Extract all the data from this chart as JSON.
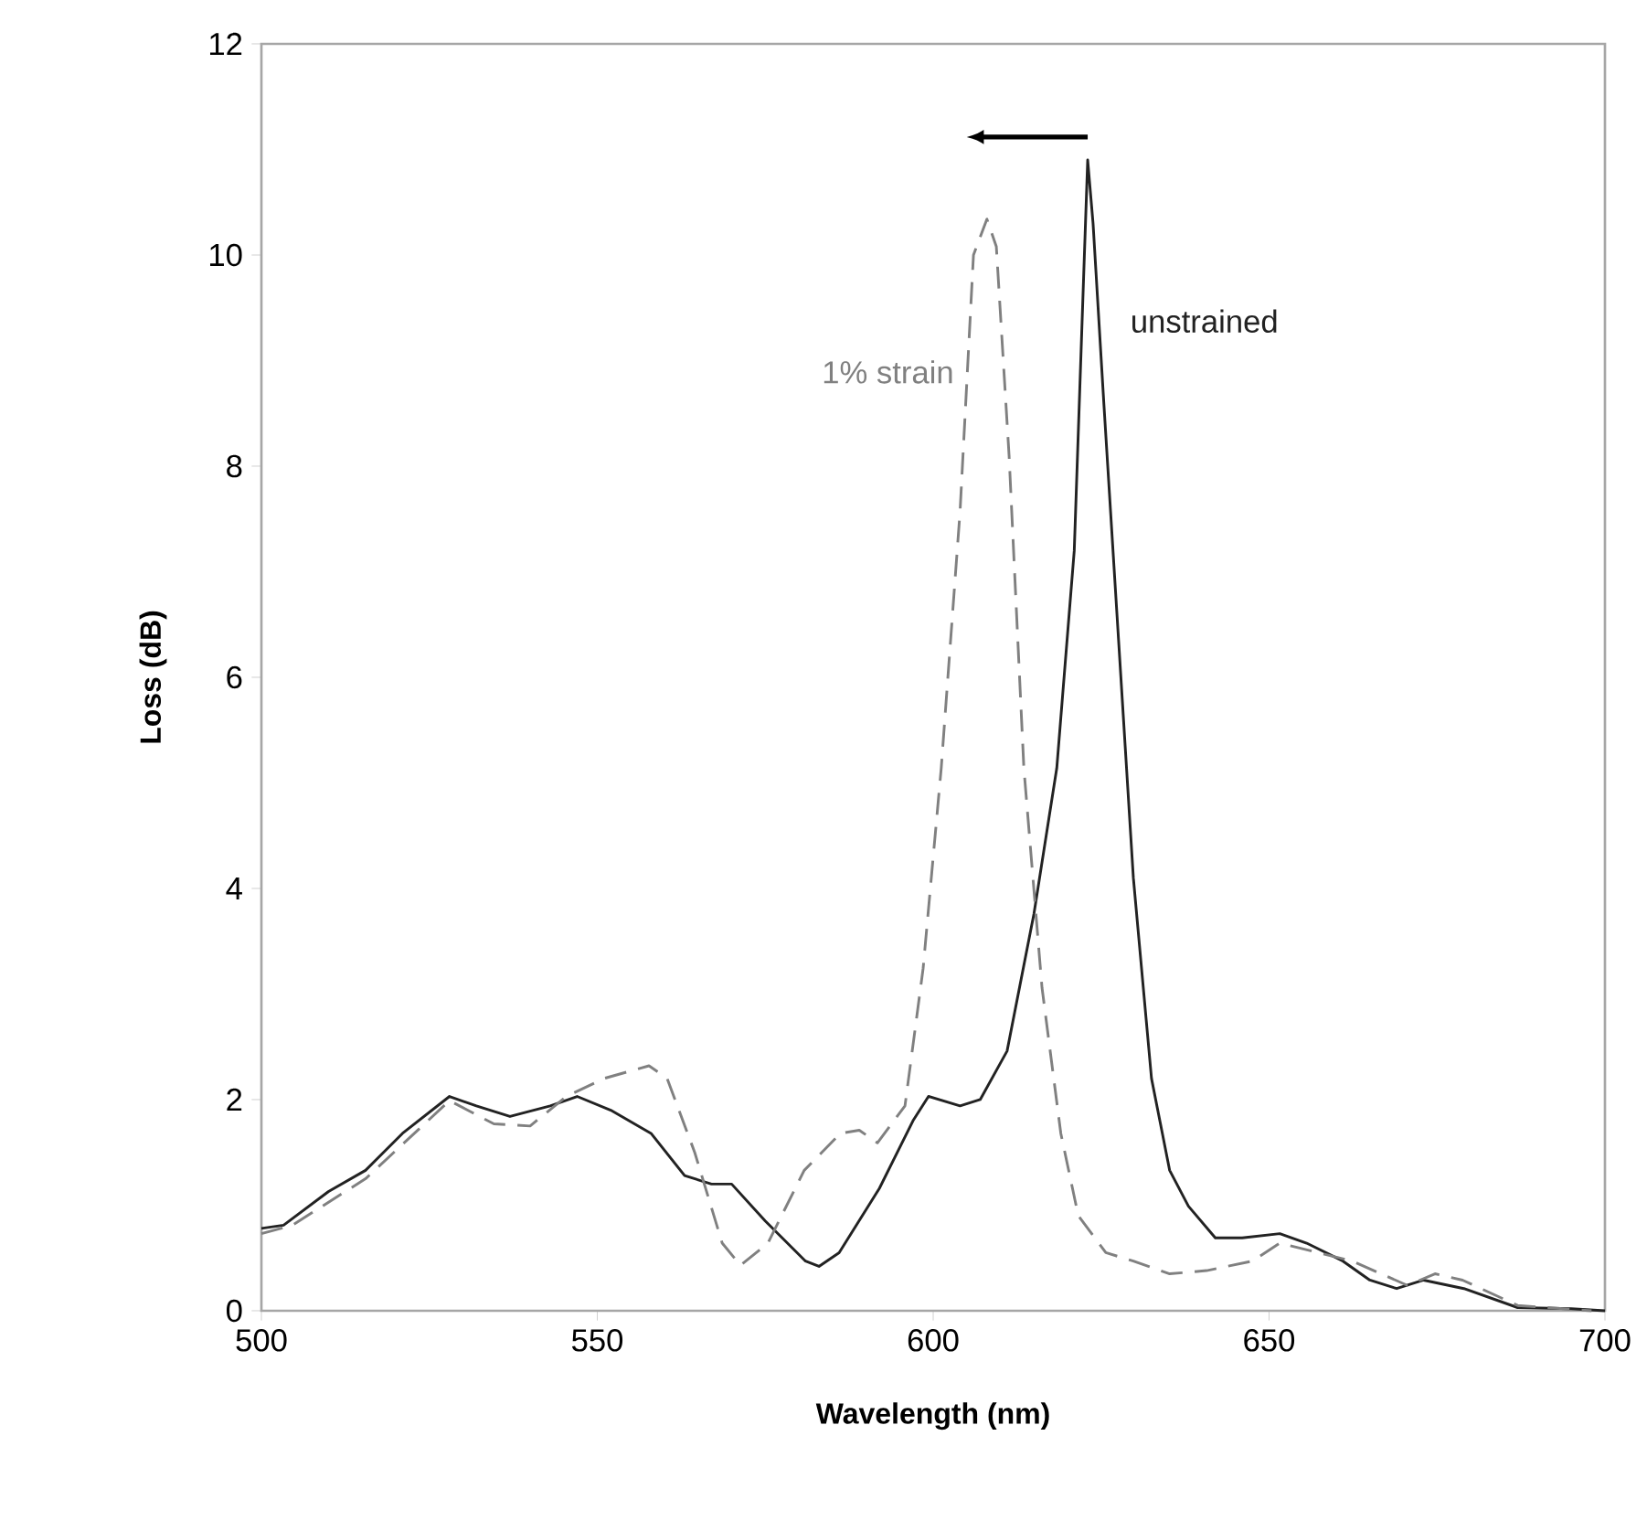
{
  "chart_data": {
    "type": "line",
    "xlabel": "Wavelength (nm)",
    "ylabel": "Loss (dB)",
    "xlim": [
      500,
      700
    ],
    "ylim": [
      0,
      12
    ],
    "xticks": [
      500,
      550,
      600,
      650,
      700
    ],
    "yticks": [
      0,
      2,
      4,
      6,
      8,
      10,
      12
    ],
    "grid": false,
    "marker": "none",
    "series": [
      {
        "name": "unstrained",
        "color": "#222222",
        "line_style": "solid",
        "x": [
          500,
          503.3,
          510,
          515.5,
          521,
          528,
          532,
          537,
          543,
          547,
          552,
          558,
          563,
          567,
          570,
          575,
          581,
          583,
          586,
          592,
          597,
          599.3,
          604,
          607,
          611,
          615,
          618.4,
          621,
          622.4,
          623,
          623.8,
          625.4,
          627.6,
          629.8,
          632.5,
          635.2,
          638,
          642,
          646,
          651.6,
          655.6,
          661,
          665,
          669,
          673,
          679,
          687,
          695,
          700
        ],
        "values": [
          0.78,
          0.81,
          1.13,
          1.33,
          1.68,
          2.03,
          1.94,
          1.84,
          1.94,
          2.03,
          1.9,
          1.68,
          1.28,
          1.2,
          1.2,
          0.85,
          0.47,
          0.42,
          0.55,
          1.16,
          1.8,
          2.03,
          1.94,
          2.0,
          2.46,
          3.76,
          5.14,
          7.2,
          9.8,
          10.9,
          10.3,
          8.6,
          6.35,
          4.1,
          2.2,
          1.33,
          0.99,
          0.69,
          0.69,
          0.73,
          0.64,
          0.47,
          0.29,
          0.21,
          0.29,
          0.21,
          0.03,
          0.02,
          0
        ]
      },
      {
        "name": "1% strain",
        "color": "#808080",
        "line_style": "dashed",
        "x": [
          500,
          504.6,
          515.5,
          528,
          534.6,
          540,
          545.4,
          551,
          557.7,
          560.4,
          564.5,
          568.6,
          571.3,
          575.4,
          580.8,
          586.2,
          589,
          591.7,
          595.8,
          598.5,
          601.2,
          604,
          606,
          608,
          609.4,
          611.3,
          613.5,
          616.2,
          619,
          621.6,
          625.7,
          629.8,
          635.2,
          640.7,
          647.5,
          651.6,
          662.4,
          670.6,
          674.7,
          678.8,
          687,
          698
        ],
        "values": [
          0.73,
          0.81,
          1.25,
          1.99,
          1.77,
          1.75,
          2.03,
          2.2,
          2.32,
          2.2,
          1.5,
          0.64,
          0.43,
          0.64,
          1.33,
          1.68,
          1.71,
          1.59,
          1.94,
          3.24,
          5.14,
          7.57,
          10.0,
          10.34,
          10.08,
          8.1,
          5.14,
          3.06,
          1.68,
          0.9,
          0.55,
          0.47,
          0.35,
          0.38,
          0.47,
          0.64,
          0.47,
          0.24,
          0.35,
          0.29,
          0.05,
          0
        ]
      }
    ]
  }
}
